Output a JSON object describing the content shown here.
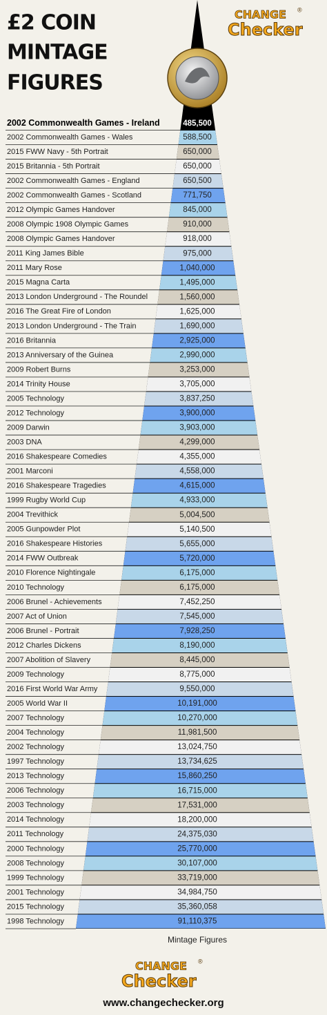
{
  "header": {
    "title_lines": [
      "£2 COIN",
      "MINTAGE",
      "FIGURES"
    ],
    "logo": {
      "top": "CHANGE",
      "bottom": "Checker",
      "mark": "®"
    }
  },
  "table": {
    "rows": [
      {
        "name": "2002 Commonwealth Games - Ireland",
        "mintage": "485,500"
      },
      {
        "name": "2002 Commonwealth Games - Wales",
        "mintage": "588,500"
      },
      {
        "name": "2015 FWW Navy - 5th Portrait",
        "mintage": "650,000"
      },
      {
        "name": "2015 Britannia - 5th Portrait",
        "mintage": "650,000"
      },
      {
        "name": "2002 Commonwealth Games - England",
        "mintage": "650,500"
      },
      {
        "name": "2002 Commonwealth Games - Scotland",
        "mintage": "771,750"
      },
      {
        "name": "2012 Olympic Games Handover",
        "mintage": "845,000"
      },
      {
        "name": "2008 Olympic 1908 Olympic Games",
        "mintage": "910,000"
      },
      {
        "name": "2008 Olympic Games Handover",
        "mintage": "918,000"
      },
      {
        "name": "2011 King James Bible",
        "mintage": "975,000"
      },
      {
        "name": "2011 Mary Rose",
        "mintage": "1,040,000"
      },
      {
        "name": "2015 Magna Carta",
        "mintage": "1,495,000"
      },
      {
        "name": "2013 London Underground - The Roundel",
        "mintage": "1,560,000"
      },
      {
        "name": "2016 The Great Fire of London",
        "mintage": "1,625,000"
      },
      {
        "name": "2013 London Underground - The Train",
        "mintage": "1,690,000"
      },
      {
        "name": "2016 Britannia",
        "mintage": "2,925,000"
      },
      {
        "name": "2013 Anniversary of the Guinea",
        "mintage": "2,990,000"
      },
      {
        "name": "2009 Robert Burns",
        "mintage": "3,253,000"
      },
      {
        "name": "2014 Trinity House",
        "mintage": "3,705,000"
      },
      {
        "name": "2005 Technology",
        "mintage": "3,837,250"
      },
      {
        "name": "2012 Technology",
        "mintage": "3,900,000"
      },
      {
        "name": "2009 Darwin",
        "mintage": "3,903,000"
      },
      {
        "name": "2003 DNA",
        "mintage": "4,299,000"
      },
      {
        "name": "2016 Shakespeare Comedies",
        "mintage": "4,355,000"
      },
      {
        "name": "2001 Marconi",
        "mintage": "4,558,000"
      },
      {
        "name": "2016 Shakespeare Tragedies",
        "mintage": "4,615,000"
      },
      {
        "name": "1999 Rugby World Cup",
        "mintage": "4,933,000"
      },
      {
        "name": "2004 Trevithick",
        "mintage": "5,004,500"
      },
      {
        "name": "2005 Gunpowder Plot",
        "mintage": "5,140,500"
      },
      {
        "name": "2016 Shakespeare Histories",
        "mintage": "5,655,000"
      },
      {
        "name": "2014 FWW Outbreak",
        "mintage": "5,720,000"
      },
      {
        "name": "2010 Florence Nightingale",
        "mintage": "6,175,000"
      },
      {
        "name": "2010 Technology",
        "mintage": "6,175,000"
      },
      {
        "name": "2006 Brunel - Achievements",
        "mintage": "7,452,250"
      },
      {
        "name": "2007 Act of Union",
        "mintage": "7,545,000"
      },
      {
        "name": "2006 Brunel - Portrait",
        "mintage": "7,928,250"
      },
      {
        "name": "2012 Charles Dickens",
        "mintage": "8,190,000"
      },
      {
        "name": "2007 Abolition of Slavery",
        "mintage": "8,445,000"
      },
      {
        "name": "2009 Technology",
        "mintage": "8,775,000"
      },
      {
        "name": "2016 First World War Army",
        "mintage": "9,550,000"
      },
      {
        "name": "2005 World War II",
        "mintage": "10,191,000"
      },
      {
        "name": "2007 Technology",
        "mintage": "10,270,000"
      },
      {
        "name": "2004 Technology",
        "mintage": "11,981,500"
      },
      {
        "name": "2002 Technology",
        "mintage": "13,024,750"
      },
      {
        "name": "1997 Technology",
        "mintage": "13,734,625"
      },
      {
        "name": "2013 Technology",
        "mintage": "15,860,250"
      },
      {
        "name": "2006 Technology",
        "mintage": "16,715,000"
      },
      {
        "name": "2003 Technology",
        "mintage": "17,531,000"
      },
      {
        "name": "2014 Technology",
        "mintage": "18,200,000"
      },
      {
        "name": "2011 Technology",
        "mintage": "24,375,030"
      },
      {
        "name": "2000 Technology",
        "mintage": "25,770,000"
      },
      {
        "name": "2008 Technology",
        "mintage": "30,107,000"
      },
      {
        "name": "1999 Technology",
        "mintage": "33,719,000"
      },
      {
        "name": "2001 Technology",
        "mintage": "34,984,750"
      },
      {
        "name": "2015 Technology",
        "mintage": "35,360,058"
      },
      {
        "name": "1998 Technology",
        "mintage": "91,110,375"
      }
    ]
  },
  "footer": {
    "caption": "Mintage Figures",
    "logo": {
      "top": "CHANGE",
      "bottom": "Checker",
      "mark": "®"
    },
    "url": "www.changechecker.org"
  }
}
